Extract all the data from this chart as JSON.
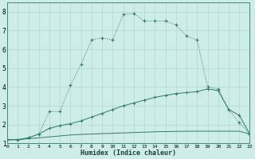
{
  "xlabel": "Humidex (Indice chaleur)",
  "background_color": "#ceecea",
  "grid_color": "#b0d8d4",
  "line_color": "#2d7a6e",
  "xlim": [
    0,
    23
  ],
  "ylim": [
    1,
    8.5
  ],
  "yticks": [
    1,
    2,
    3,
    4,
    5,
    6,
    7,
    8
  ],
  "xticks": [
    0,
    1,
    2,
    3,
    4,
    5,
    6,
    7,
    8,
    9,
    10,
    11,
    12,
    13,
    14,
    15,
    16,
    17,
    18,
    19,
    20,
    21,
    22,
    23
  ],
  "s1_x": [
    0,
    1,
    2,
    3,
    4,
    5,
    6,
    7,
    8,
    9,
    10,
    11,
    12,
    13,
    14,
    15,
    16,
    17,
    18,
    19,
    20,
    21,
    22,
    23
  ],
  "s1_y": [
    1.2,
    1.2,
    1.25,
    1.3,
    1.35,
    1.4,
    1.45,
    1.48,
    1.5,
    1.52,
    1.54,
    1.56,
    1.58,
    1.6,
    1.62,
    1.63,
    1.64,
    1.65,
    1.65,
    1.65,
    1.65,
    1.65,
    1.65,
    1.5
  ],
  "s2_x": [
    0,
    1,
    2,
    3,
    4,
    5,
    6,
    7,
    8,
    9,
    10,
    11,
    12,
    13,
    14,
    15,
    16,
    17,
    18,
    19,
    20,
    21,
    22,
    23
  ],
  "s2_y": [
    1.2,
    1.2,
    1.3,
    1.5,
    1.8,
    1.95,
    2.05,
    2.2,
    2.4,
    2.6,
    2.8,
    3.0,
    3.15,
    3.3,
    3.45,
    3.55,
    3.65,
    3.7,
    3.75,
    3.9,
    3.8,
    2.8,
    2.5,
    1.5
  ],
  "s3_x": [
    0,
    1,
    2,
    3,
    4,
    5,
    6,
    7,
    8,
    9,
    10,
    11,
    12,
    13,
    14,
    15,
    16,
    17,
    18,
    19,
    20,
    21,
    22,
    23
  ],
  "s3_y": [
    1.2,
    1.2,
    1.3,
    1.5,
    2.7,
    2.7,
    4.1,
    5.2,
    6.5,
    6.6,
    6.5,
    7.85,
    7.9,
    7.5,
    7.5,
    7.5,
    7.3,
    6.7,
    6.5,
    4.0,
    3.9,
    2.8,
    2.1,
    1.5
  ],
  "figwidth": 3.2,
  "figheight": 2.0,
  "dpi": 100
}
